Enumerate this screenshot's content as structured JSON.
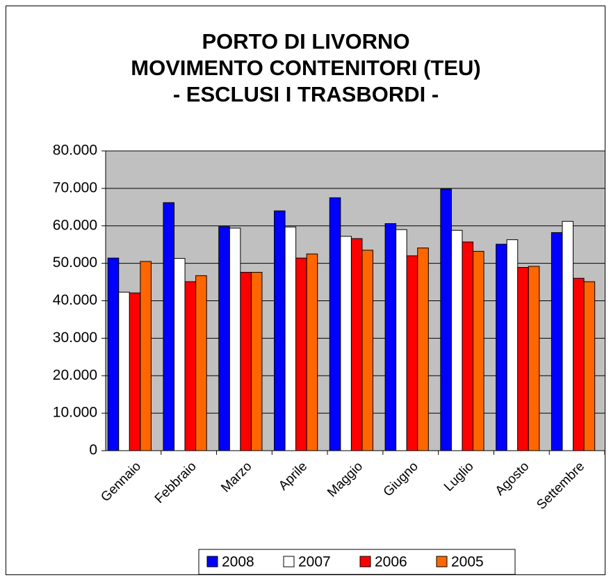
{
  "chart_data": {
    "type": "bar",
    "title": [
      "PORTO DI LIVORNO",
      "MOVIMENTO CONTENITORI (TEU)",
      "- ESCLUSI I TRASBORDI -"
    ],
    "categories": [
      "Gennaio",
      "Febbraio",
      "Marzo",
      "Aprile",
      "Maggio",
      "Giugno",
      "Luglio",
      "Agosto",
      "Settembre"
    ],
    "series": [
      {
        "name": "2008",
        "color": "#0000ff",
        "values": [
          51400,
          66200,
          59800,
          64000,
          67500,
          60600,
          69800,
          55100,
          58200
        ]
      },
      {
        "name": "2007",
        "color": "#ffffff",
        "values": [
          42300,
          51300,
          59400,
          59700,
          57200,
          59000,
          58800,
          56300,
          61200
        ]
      },
      {
        "name": "2006",
        "color": "#ff0000",
        "values": [
          42100,
          45100,
          47600,
          51400,
          56600,
          52000,
          55700,
          48900,
          46000
        ]
      },
      {
        "name": "2005",
        "color": "#ff6600",
        "values": [
          50500,
          46700,
          47600,
          52500,
          53500,
          54100,
          53200,
          49200,
          45100
        ]
      }
    ],
    "ylim": [
      0,
      80000
    ],
    "yticks": [
      0,
      {
        "value": 10000,
        "label": "10.000"
      },
      {
        "value": 20000,
        "label": "20.000"
      },
      {
        "value": 30000,
        "label": "30.000"
      },
      {
        "value": 40000,
        "label": "40.000"
      },
      {
        "value": 50000,
        "label": "50.000"
      },
      {
        "value": 60000,
        "label": "60.000"
      },
      {
        "value": 70000,
        "label": "70.000"
      },
      {
        "value": 80000,
        "label": "80.000"
      }
    ],
    "grid": true,
    "legend": "bottom"
  }
}
